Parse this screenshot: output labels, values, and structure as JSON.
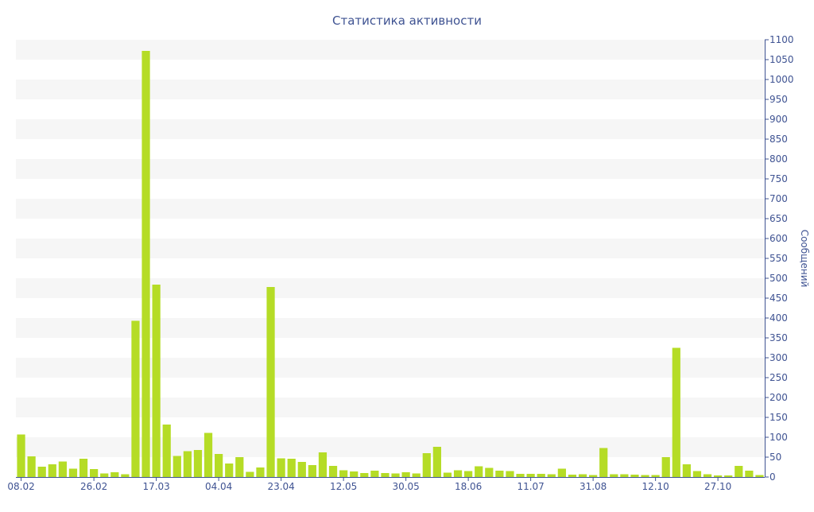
{
  "chart_data": {
    "type": "bar",
    "title": "Статистика активности",
    "xlabel": "",
    "ylabel": "Сообщений",
    "y_axis_position": "right",
    "ylim": [
      0,
      1100
    ],
    "y_ticks": [
      0,
      50,
      100,
      150,
      200,
      250,
      300,
      350,
      400,
      450,
      500,
      550,
      600,
      650,
      700,
      750,
      800,
      850,
      900,
      950,
      1000,
      1050,
      1100
    ],
    "x_tick_labels": [
      {
        "index": 0,
        "label": "08.02"
      },
      {
        "index": 7,
        "label": "26.02"
      },
      {
        "index": 13,
        "label": "17.03"
      },
      {
        "index": 19,
        "label": "04.04"
      },
      {
        "index": 25,
        "label": "23.04"
      },
      {
        "index": 31,
        "label": "12.05"
      },
      {
        "index": 37,
        "label": "30.05"
      },
      {
        "index": 43,
        "label": "18.06"
      },
      {
        "index": 49,
        "label": "11.07"
      },
      {
        "index": 55,
        "label": "31.08"
      },
      {
        "index": 61,
        "label": "12.10"
      },
      {
        "index": 67,
        "label": "27.10"
      }
    ],
    "values": [
      107,
      52,
      26,
      32,
      39,
      21,
      46,
      20,
      9,
      12,
      7,
      393,
      1072,
      484,
      132,
      53,
      65,
      68,
      111,
      58,
      34,
      50,
      13,
      24,
      478,
      47,
      46,
      38,
      30,
      62,
      28,
      17,
      14,
      10,
      16,
      10,
      9,
      12,
      9,
      60,
      76,
      11,
      17,
      15,
      27,
      23,
      16,
      15,
      8,
      8,
      8,
      7,
      21,
      6,
      7,
      5,
      73,
      7,
      7,
      6,
      5,
      5,
      50,
      325,
      32,
      15,
      7,
      4,
      4,
      28,
      16,
      5
    ],
    "bar_color": "#b5dc26",
    "grid_band_color": "#f6f6f6",
    "axis_color": "#3f5392",
    "grid": "horizontal bands",
    "legend": "none"
  }
}
